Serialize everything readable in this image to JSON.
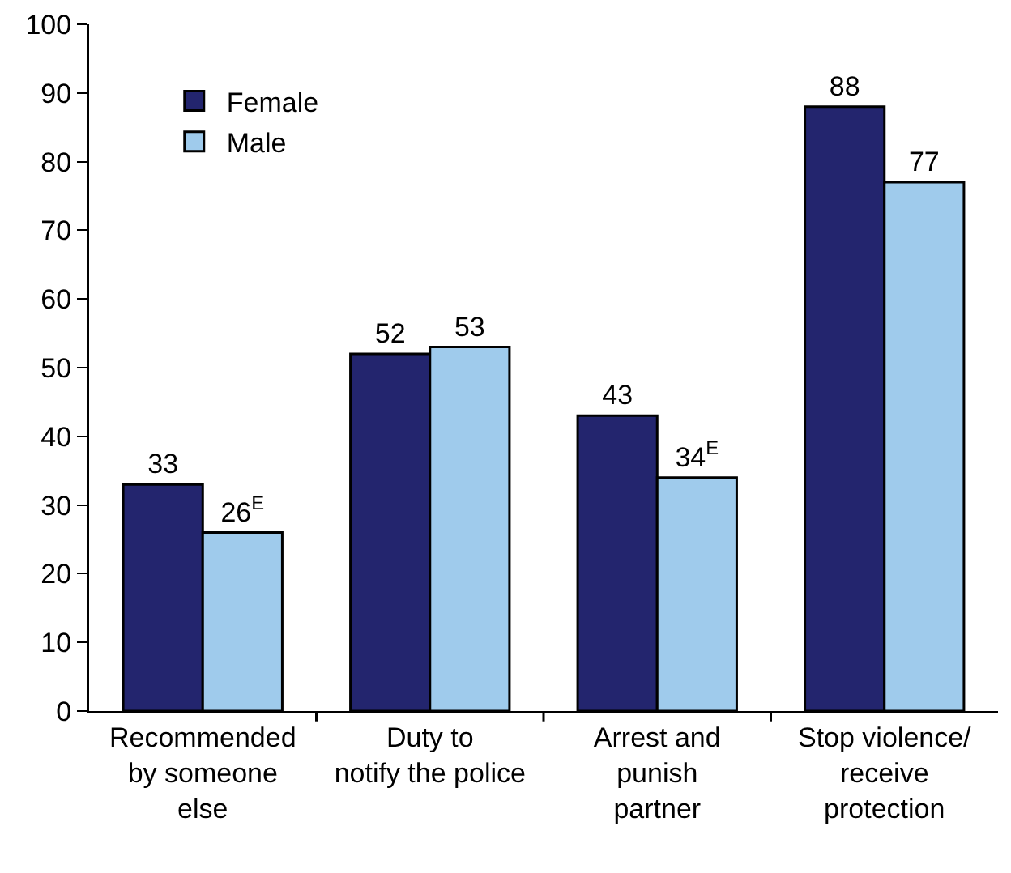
{
  "chart_data": {
    "type": "bar",
    "categories": [
      "Recommended\nby someone\nelse",
      "Duty to\nnotify the police",
      "Arrest and\npunish\npartner",
      "Stop violence/\nreceive\nprotection"
    ],
    "series": [
      {
        "name": "Female",
        "color": "#23256e",
        "values": [
          33,
          52,
          43,
          88
        ],
        "value_labels": [
          "33",
          "52",
          "43",
          "88"
        ]
      },
      {
        "name": "Male",
        "color": "#9fcbec",
        "values": [
          26,
          53,
          34,
          77
        ],
        "value_labels": [
          "26$^{E}$",
          "53",
          "34$^{E}$",
          "77"
        ]
      }
    ],
    "ylim": [
      0,
      100
    ],
    "yticks": [
      0,
      10,
      20,
      30,
      40,
      50,
      60,
      70,
      80,
      90,
      100
    ],
    "grid": false,
    "legend": "top left"
  }
}
